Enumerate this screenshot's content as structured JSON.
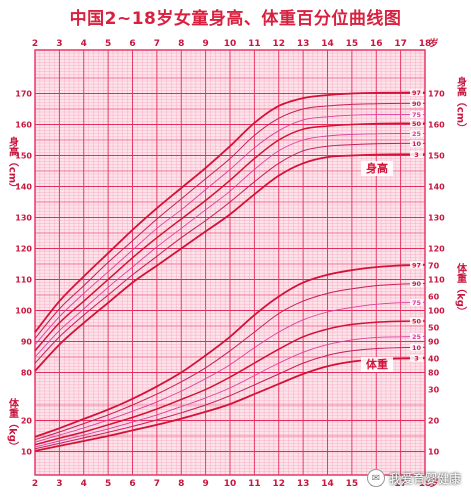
{
  "chart_data": {
    "type": "line",
    "title": "中国2~18岁女童身高、体重百分位曲线图",
    "age_unit": "岁",
    "x_ticks": [
      2,
      3,
      4,
      5,
      6,
      7,
      8,
      9,
      10,
      11,
      12,
      13,
      14,
      15,
      16,
      17,
      18
    ],
    "xlim": [
      2,
      18
    ],
    "percentile_labels": [
      "97",
      "90",
      "75",
      "50",
      "25",
      "10",
      "3"
    ],
    "height": {
      "label": "身高",
      "axis_label": "身高（cm）",
      "unit": "cm",
      "ylim": [
        75,
        175
      ],
      "ticks": [
        80,
        90,
        100,
        110,
        120,
        130,
        140,
        150,
        160,
        170
      ],
      "ages": [
        2,
        3,
        4,
        5,
        6,
        7,
        8,
        9,
        10,
        11,
        12,
        13,
        14,
        15,
        16,
        17,
        18
      ],
      "series": [
        {
          "p": "97",
          "values": [
            93,
            103,
            111,
            118.5,
            126,
            133,
            139.5,
            146,
            153,
            160.5,
            166,
            168.5,
            169.5,
            170,
            170.2,
            170.3,
            170.3
          ]
        },
        {
          "p": "90",
          "values": [
            91,
            100.5,
            108,
            115.5,
            122.5,
            129.5,
            136,
            142.5,
            149,
            156.5,
            162,
            165,
            166,
            166.5,
            166.7,
            166.8,
            166.8
          ]
        },
        {
          "p": "75",
          "values": [
            89,
            98,
            105.5,
            112.5,
            119.5,
            126.5,
            132.5,
            139,
            145.5,
            152.5,
            158,
            161.5,
            162.5,
            163,
            163.2,
            163.2,
            163.2
          ]
        },
        {
          "p": "50",
          "values": [
            87,
            96,
            103,
            110,
            117,
            123.5,
            129.5,
            135.5,
            142,
            149,
            155,
            158.5,
            159.5,
            160,
            160.3,
            160.4,
            160.4
          ]
        },
        {
          "p": "25",
          "values": [
            85,
            93.5,
            100.5,
            107.5,
            114,
            120.5,
            126.5,
            132.5,
            138.5,
            145.5,
            151.5,
            155,
            156.3,
            156.8,
            157,
            157.1,
            157.1
          ]
        },
        {
          "p": "10",
          "values": [
            83,
            91.5,
            98.5,
            105,
            111.5,
            117.5,
            123.5,
            129,
            135,
            141.5,
            147.5,
            151.5,
            153,
            153.5,
            153.8,
            153.9,
            153.9
          ]
        },
        {
          "p": "3",
          "values": [
            80.5,
            89,
            96,
            102.5,
            109,
            114.5,
            120,
            125.5,
            131,
            137.5,
            143.5,
            147.5,
            149.5,
            150,
            150.3,
            150.4,
            150.4
          ]
        }
      ]
    },
    "weight": {
      "label": "体重",
      "axis_label": "体重（kg）",
      "unit": "kg",
      "ylim": [
        5,
        75
      ],
      "ticks": [
        10,
        20,
        30,
        40,
        50,
        60,
        70
      ],
      "ages": [
        2,
        3,
        4,
        5,
        6,
        7,
        8,
        9,
        10,
        11,
        12,
        13,
        14,
        15,
        16,
        17,
        18
      ],
      "series": [
        {
          "p": "97",
          "values": [
            14.7,
            17.5,
            20.5,
            23.5,
            27,
            31,
            35.5,
            41,
            47,
            54,
            60,
            64.5,
            67,
            68.5,
            69.5,
            70,
            70.2
          ]
        },
        {
          "p": "90",
          "values": [
            13.8,
            16.3,
            19,
            21.8,
            25,
            28.5,
            32.5,
            37,
            42.5,
            48.5,
            54.5,
            58.5,
            61,
            62.5,
            63.5,
            64,
            64.2
          ]
        },
        {
          "p": "75",
          "values": [
            13,
            15.3,
            17.6,
            20.2,
            23,
            26,
            29.5,
            33.5,
            38,
            43.5,
            48.5,
            52.5,
            55,
            56.5,
            57.5,
            58,
            58.1
          ]
        },
        {
          "p": "50",
          "values": [
            12.2,
            14.3,
            16.3,
            18.6,
            21,
            23.7,
            26.8,
            30,
            34,
            38.5,
            43,
            47,
            49.5,
            51,
            51.7,
            52,
            52.1
          ]
        },
        {
          "p": "25",
          "values": [
            11.5,
            13.4,
            15.3,
            17.3,
            19.5,
            21.8,
            24.5,
            27.3,
            30.5,
            34.5,
            38.5,
            42,
            44.5,
            46,
            46.8,
            47,
            47.1
          ]
        },
        {
          "p": "10",
          "values": [
            10.9,
            12.6,
            14.4,
            16.2,
            18.1,
            20.2,
            22.5,
            25,
            28,
            31.5,
            35,
            38.5,
            41,
            42.5,
            43.2,
            43.5,
            43.6
          ]
        },
        {
          "p": "3",
          "values": [
            10.2,
            11.8,
            13.4,
            15,
            16.8,
            18.6,
            20.6,
            22.8,
            25.3,
            28.5,
            31.8,
            35,
            37.5,
            39,
            39.7,
            40,
            40.1
          ]
        }
      ]
    },
    "colors": {
      "grid_minor": "#f7a3bd",
      "grid_major": "#e62c5c",
      "axis_text": "#c8173f",
      "curve_outer": "#d31238",
      "curve_mid": "#c2205a",
      "curve_inner": "#dd3fa0",
      "background": "#fde3ea"
    }
  },
  "watermark": {
    "icon": "chat-bubble-icon",
    "text": "我爱育婴健康"
  }
}
